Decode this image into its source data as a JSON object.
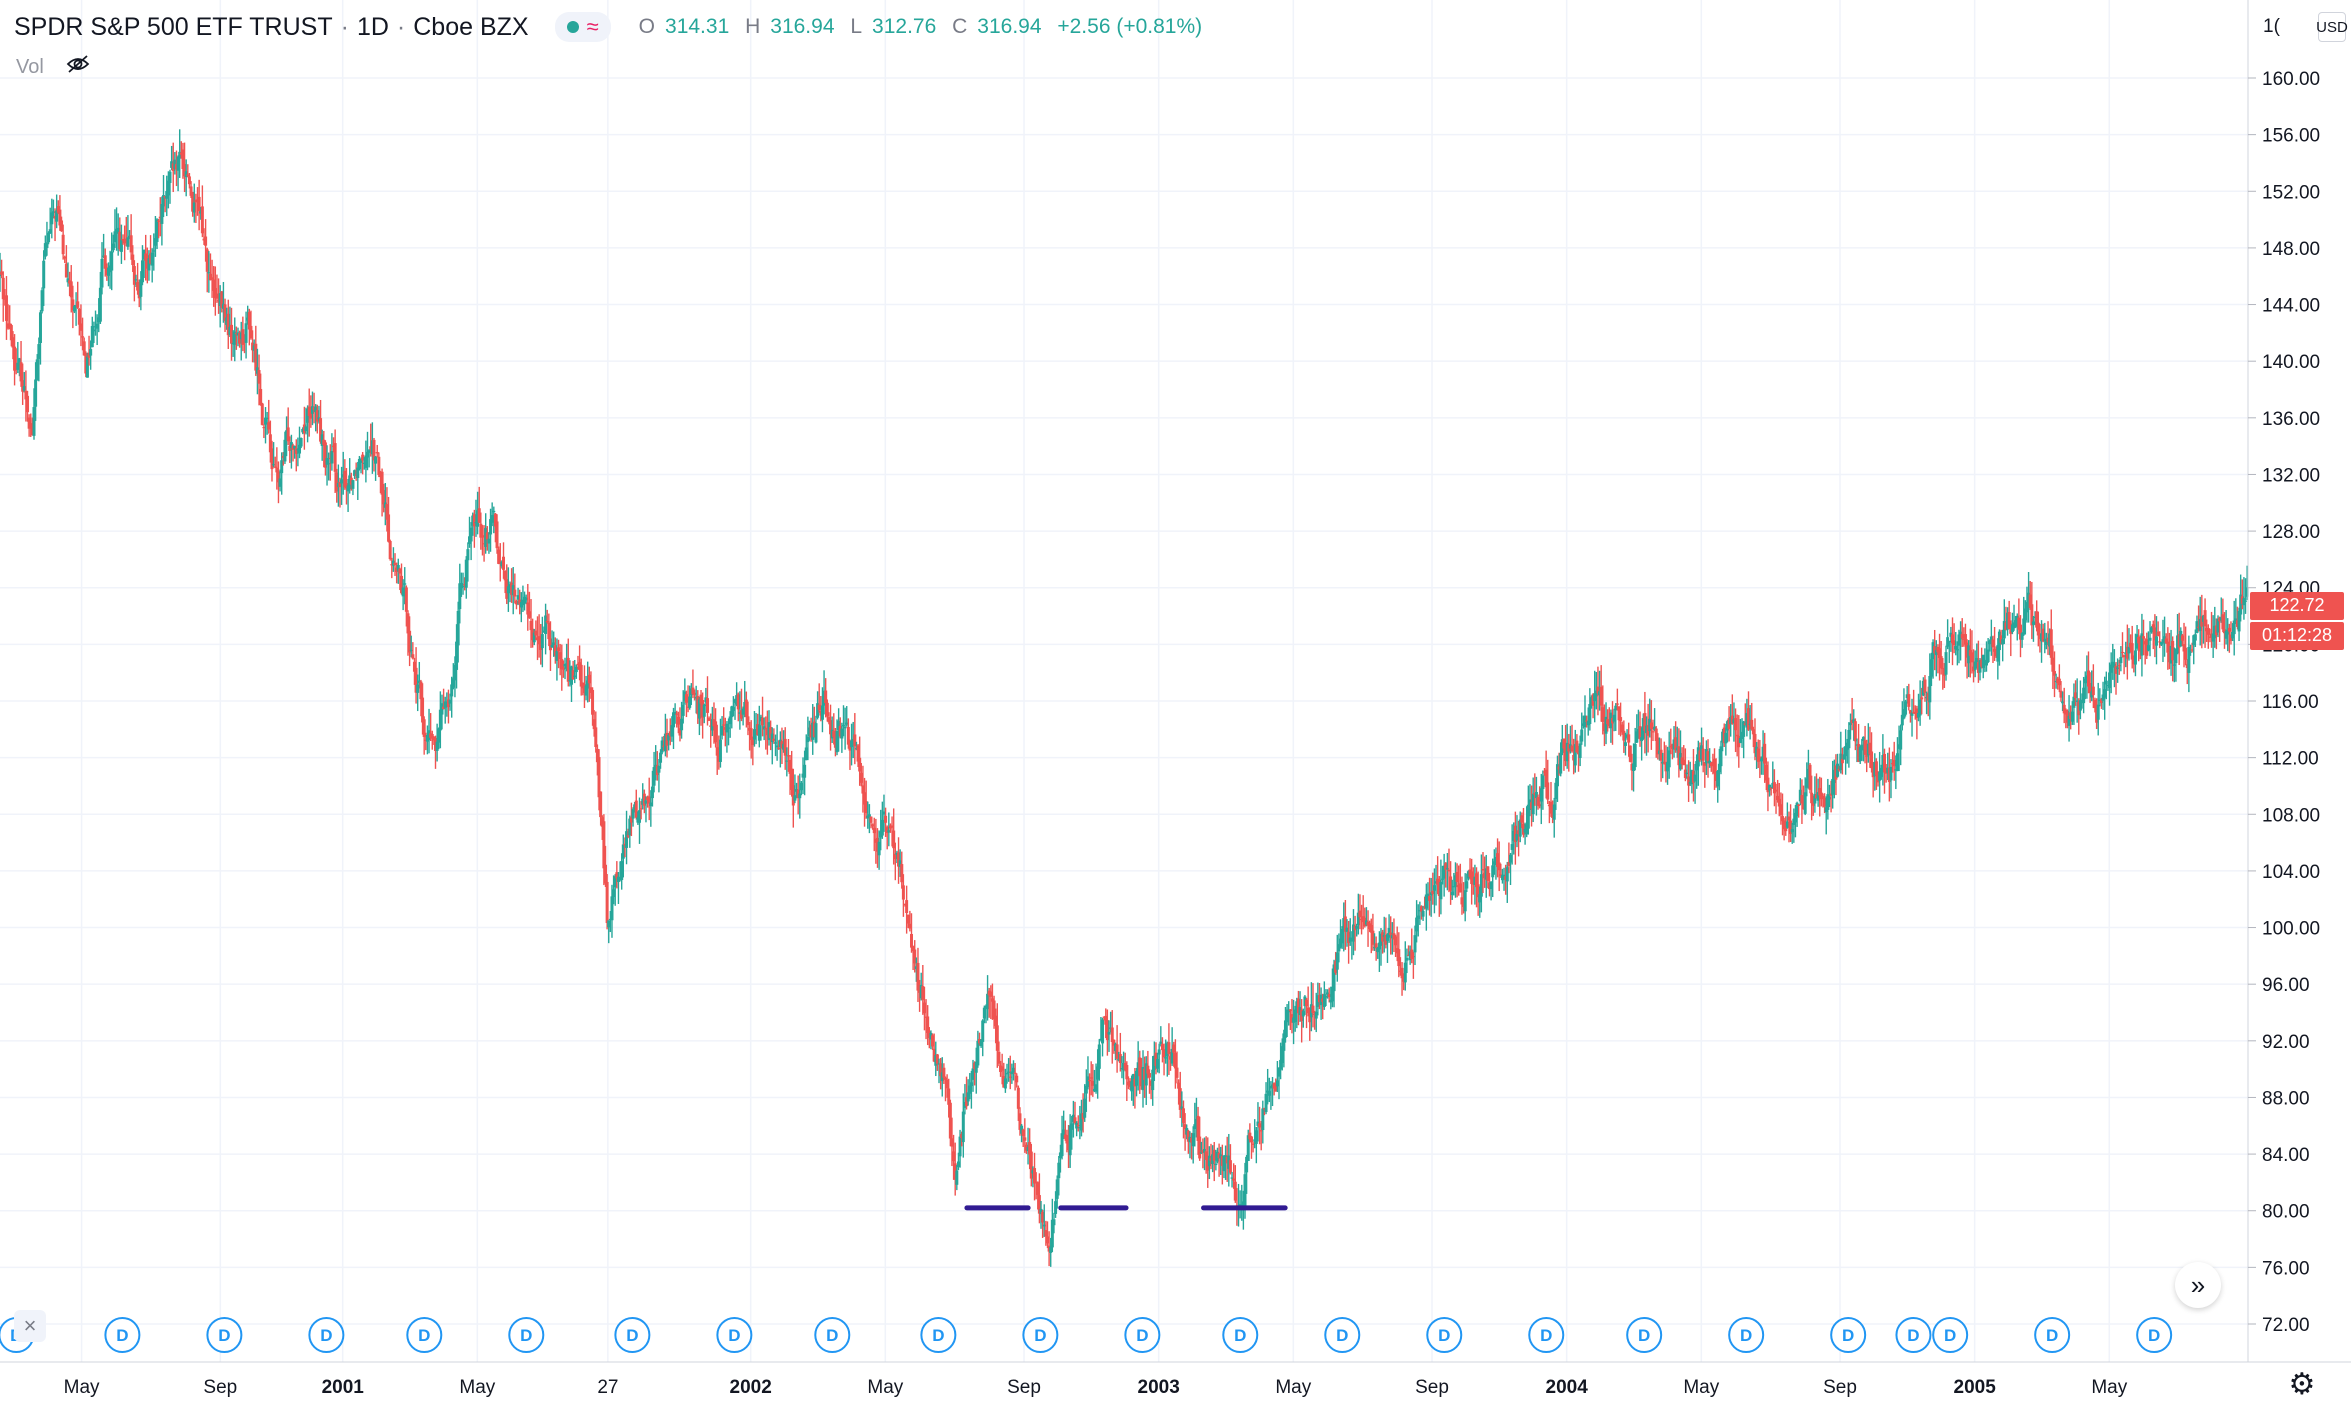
{
  "header": {
    "symbol": "SPDR S&P 500 ETF TRUST",
    "interval": "1D",
    "exchange": "Cboe BZX",
    "separator": "·",
    "ohlc": {
      "open_label": "O",
      "open": "314.31",
      "high_label": "H",
      "high": "316.94",
      "low_label": "L",
      "low": "312.76",
      "close_label": "C",
      "close": "316.94",
      "change": "+2.56 (+0.81%)"
    },
    "vol_label": "Vol",
    "currency": "USD"
  },
  "price_scale": {
    "last_price": "122.72",
    "countdown": "01:12:28",
    "top_partial_label": "1("
  },
  "buttons": {
    "scroll_forward": "»",
    "close_symbol": "×",
    "settings_symbol": "⚙"
  },
  "dividend_marker_label": "D",
  "colors": {
    "up": "#26a69a",
    "down": "#ef5350",
    "support_line": "#311b92",
    "marker": "#2196f3",
    "grid": "#f0f3fa"
  },
  "chart_data": {
    "type": "candlestick",
    "title": "SPDR S&P 500 ETF TRUST · 1D · Cboe BZX",
    "ylim": [
      70,
      164
    ],
    "y_ticks": [
      "72.00",
      "76.00",
      "80.00",
      "84.00",
      "88.00",
      "92.00",
      "96.00",
      "100.00",
      "104.00",
      "108.00",
      "112.00",
      "116.00",
      "120.00",
      "124.00",
      "128.00",
      "132.00",
      "136.00",
      "140.00",
      "144.00",
      "148.00",
      "152.00",
      "156.00",
      "160.00"
    ],
    "x_range": [
      2000.16,
      2005.67
    ],
    "x_ticks": [
      {
        "label": "May",
        "t": 2000.36,
        "bold": false
      },
      {
        "label": "Sep",
        "t": 2000.7,
        "bold": false
      },
      {
        "label": "2001",
        "t": 2001.0,
        "bold": true
      },
      {
        "label": "May",
        "t": 2001.33,
        "bold": false
      },
      {
        "label": "27",
        "t": 2001.65,
        "bold": false
      },
      {
        "label": "2002",
        "t": 2002.0,
        "bold": true
      },
      {
        "label": "May",
        "t": 2002.33,
        "bold": false
      },
      {
        "label": "Sep",
        "t": 2002.67,
        "bold": false
      },
      {
        "label": "2003",
        "t": 2003.0,
        "bold": true
      },
      {
        "label": "May",
        "t": 2003.33,
        "bold": false
      },
      {
        "label": "Sep",
        "t": 2003.67,
        "bold": false
      },
      {
        "label": "2004",
        "t": 2004.0,
        "bold": true
      },
      {
        "label": "May",
        "t": 2004.33,
        "bold": false
      },
      {
        "label": "Sep",
        "t": 2004.67,
        "bold": false
      },
      {
        "label": "2005",
        "t": 2005.0,
        "bold": true
      },
      {
        "label": "May",
        "t": 2005.33,
        "bold": false
      }
    ],
    "price_path": [
      [
        2000.16,
        146
      ],
      [
        2000.2,
        140
      ],
      [
        2000.24,
        136
      ],
      [
        2000.27,
        147
      ],
      [
        2000.3,
        150
      ],
      [
        2000.33,
        144
      ],
      [
        2000.37,
        139
      ],
      [
        2000.41,
        147
      ],
      [
        2000.45,
        148
      ],
      [
        2000.5,
        145
      ],
      [
        2000.55,
        150
      ],
      [
        2000.62,
        153
      ],
      [
        2000.66,
        148
      ],
      [
        2000.69,
        143
      ],
      [
        2000.73,
        141
      ],
      [
        2000.77,
        143
      ],
      [
        2000.8,
        138
      ],
      [
        2000.84,
        131
      ],
      [
        2000.88,
        135
      ],
      [
        2000.92,
        138
      ],
      [
        2000.96,
        133
      ],
      [
        2001.0,
        130
      ],
      [
        2001.04,
        134
      ],
      [
        2001.07,
        137
      ],
      [
        2001.1,
        130
      ],
      [
        2001.14,
        124
      ],
      [
        2001.17,
        120
      ],
      [
        2001.2,
        114
      ],
      [
        2001.23,
        112
      ],
      [
        2001.27,
        119
      ],
      [
        2001.3,
        126
      ],
      [
        2001.33,
        128
      ],
      [
        2001.37,
        129
      ],
      [
        2001.41,
        124
      ],
      [
        2001.45,
        122
      ],
      [
        2001.48,
        121
      ],
      [
        2001.52,
        121
      ],
      [
        2001.56,
        118
      ],
      [
        2001.6,
        116
      ],
      [
        2001.62,
        113
      ],
      [
        2001.65,
        100
      ],
      [
        2001.67,
        103
      ],
      [
        2001.71,
        107
      ],
      [
        2001.75,
        110
      ],
      [
        2001.8,
        114
      ],
      [
        2001.86,
        116
      ],
      [
        2001.92,
        114
      ],
      [
        2001.97,
        116
      ],
      [
        2002.0,
        116
      ],
      [
        2002.04,
        114
      ],
      [
        2002.08,
        112
      ],
      [
        2002.11,
        109
      ],
      [
        2002.16,
        113
      ],
      [
        2002.18,
        117
      ],
      [
        2002.22,
        114
      ],
      [
        2002.27,
        111
      ],
      [
        2002.3,
        108
      ],
      [
        2002.33,
        106
      ],
      [
        2002.37,
        103
      ],
      [
        2002.4,
        98
      ],
      [
        2002.44,
        92
      ],
      [
        2002.47,
        88
      ],
      [
        2002.5,
        82
      ],
      [
        2002.52,
        86
      ],
      [
        2002.55,
        90
      ],
      [
        2002.58,
        95
      ],
      [
        2002.61,
        91
      ],
      [
        2002.64,
        88
      ],
      [
        2002.67,
        85
      ],
      [
        2002.7,
        81
      ],
      [
        2002.73,
        79
      ],
      [
        2002.76,
        84
      ],
      [
        2002.8,
        88
      ],
      [
        2002.83,
        90
      ],
      [
        2002.87,
        93
      ],
      [
        2002.9,
        91
      ],
      [
        2002.93,
        89
      ],
      [
        2002.97,
        90
      ],
      [
        2003.0,
        92
      ],
      [
        2003.04,
        92
      ],
      [
        2003.07,
        86
      ],
      [
        2003.11,
        84
      ],
      [
        2003.15,
        83
      ],
      [
        2003.19,
        81
      ],
      [
        2003.22,
        85
      ],
      [
        2003.26,
        88
      ],
      [
        2003.3,
        91
      ],
      [
        2003.35,
        93
      ],
      [
        2003.4,
        95
      ],
      [
        2003.45,
        99
      ],
      [
        2003.5,
        100
      ],
      [
        2003.55,
        98
      ],
      [
        2003.6,
        97
      ],
      [
        2003.65,
        101
      ],
      [
        2003.7,
        103
      ],
      [
        2003.75,
        102
      ],
      [
        2003.8,
        104
      ],
      [
        2003.85,
        105
      ],
      [
        2003.9,
        108
      ],
      [
        2003.95,
        110
      ],
      [
        2004.0,
        112
      ],
      [
        2004.04,
        115
      ],
      [
        2004.08,
        116
      ],
      [
        2004.13,
        114
      ],
      [
        2004.16,
        112
      ],
      [
        2004.2,
        115
      ],
      [
        2004.25,
        113
      ],
      [
        2004.3,
        110
      ],
      [
        2004.35,
        112
      ],
      [
        2004.4,
        113
      ],
      [
        2004.45,
        113
      ],
      [
        2004.5,
        111
      ],
      [
        2004.55,
        108
      ],
      [
        2004.6,
        109
      ],
      [
        2004.65,
        111
      ],
      [
        2004.7,
        112
      ],
      [
        2004.75,
        112
      ],
      [
        2004.8,
        111
      ],
      [
        2004.85,
        116
      ],
      [
        2004.9,
        119
      ],
      [
        2004.95,
        121
      ],
      [
        2005.0,
        120
      ],
      [
        2005.04,
        118
      ],
      [
        2005.08,
        121
      ],
      [
        2005.13,
        122
      ],
      [
        2005.17,
        120
      ],
      [
        2005.21,
        117
      ],
      [
        2005.25,
        116
      ],
      [
        2005.3,
        115
      ],
      [
        2005.34,
        117
      ],
      [
        2005.4,
        120
      ],
      [
        2005.45,
        121
      ],
      [
        2005.5,
        120
      ],
      [
        2005.55,
        121
      ],
      [
        2005.6,
        123
      ],
      [
        2005.67,
        123
      ]
    ],
    "annotations": [
      {
        "type": "support_line",
        "price": 80.2,
        "t_start": 2002.53,
        "t_end": 2002.68
      },
      {
        "type": "support_line",
        "price": 80.2,
        "t_start": 2002.76,
        "t_end": 2002.92
      },
      {
        "type": "support_line",
        "price": 80.2,
        "t_start": 2003.11,
        "t_end": 2003.31
      }
    ],
    "dividend_markers": [
      2000.2,
      2000.46,
      2000.71,
      2000.96,
      2001.2,
      2001.45,
      2001.71,
      2001.96,
      2002.2,
      2002.46,
      2002.71,
      2002.96,
      2003.2,
      2003.45,
      2003.7,
      2003.95,
      2004.19,
      2004.44,
      2004.69,
      2004.85,
      2004.94,
      2005.19,
      2005.44
    ],
    "last_price": 122.72
  }
}
